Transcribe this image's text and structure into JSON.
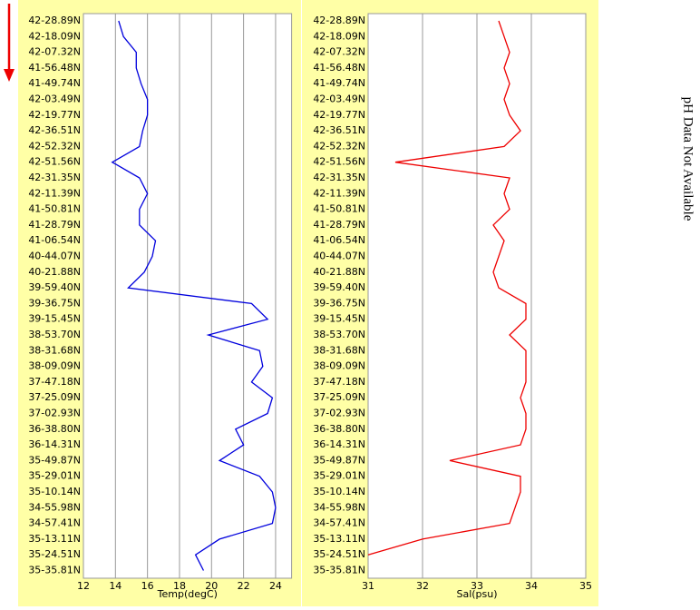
{
  "chart_data": [
    {
      "type": "line",
      "orientation": "horizontal",
      "xlabel": "Temp(degC)",
      "categories": [
        "42-28.89N",
        "42-18.09N",
        "42-07.32N",
        "41-56.48N",
        "41-49.74N",
        "42-03.49N",
        "42-19.77N",
        "42-36.51N",
        "42-52.32N",
        "42-51.56N",
        "42-31.35N",
        "42-11.39N",
        "41-50.81N",
        "41-28.79N",
        "41-06.54N",
        "40-44.07N",
        "40-21.88N",
        "39-59.40N",
        "39-36.75N",
        "39-15.45N",
        "38-53.70N",
        "38-31.68N",
        "38-09.09N",
        "37-47.18N",
        "37-25.09N",
        "37-02.93N",
        "36-38.80N",
        "36-14.31N",
        "35-49.87N",
        "35-29.01N",
        "35-10.14N",
        "34-55.98N",
        "34-57.41N",
        "35-13.11N",
        "35-24.51N",
        "35-35.81N"
      ],
      "series": [
        {
          "color": "#0000dd",
          "values": [
            14.2,
            14.5,
            15.3,
            15.3,
            15.6,
            16.0,
            16.0,
            15.7,
            15.5,
            13.8,
            15.5,
            16.0,
            15.5,
            15.5,
            16.5,
            16.3,
            15.8,
            14.8,
            22.5,
            23.5,
            19.8,
            23.0,
            23.2,
            22.5,
            23.8,
            23.5,
            21.5,
            22.0,
            20.5,
            23.0,
            23.8,
            24.0,
            23.8,
            20.5,
            19.0,
            19.5
          ]
        }
      ],
      "xlim": [
        12,
        25
      ],
      "xticks": [
        12,
        14,
        16,
        18,
        20,
        22,
        24
      ],
      "grid": true
    },
    {
      "type": "line",
      "orientation": "horizontal",
      "xlabel": "Sal(psu)",
      "categories": [
        "42-28.89N",
        "42-18.09N",
        "42-07.32N",
        "41-56.48N",
        "41-49.74N",
        "42-03.49N",
        "42-19.77N",
        "42-36.51N",
        "42-52.32N",
        "42-51.56N",
        "42-31.35N",
        "42-11.39N",
        "41-50.81N",
        "41-28.79N",
        "41-06.54N",
        "40-44.07N",
        "40-21.88N",
        "39-59.40N",
        "39-36.75N",
        "39-15.45N",
        "38-53.70N",
        "38-31.68N",
        "38-09.09N",
        "37-47.18N",
        "37-25.09N",
        "37-02.93N",
        "36-38.80N",
        "36-14.31N",
        "35-49.87N",
        "35-29.01N",
        "35-10.14N",
        "34-55.98N",
        "34-57.41N",
        "35-13.11N",
        "35-24.51N",
        "35-35.81N"
      ],
      "series": [
        {
          "color": "#ee0000",
          "values": [
            33.4,
            33.5,
            33.6,
            33.5,
            33.6,
            33.5,
            33.6,
            33.8,
            33.5,
            31.5,
            33.6,
            33.5,
            33.6,
            33.3,
            33.5,
            33.4,
            33.3,
            33.4,
            33.9,
            33.9,
            33.6,
            33.9,
            33.9,
            33.9,
            33.8,
            33.9,
            33.9,
            33.8,
            32.5,
            33.8,
            33.8,
            33.7,
            33.6,
            32.0,
            31.0,
            null
          ]
        }
      ],
      "xlim": [
        31,
        35
      ],
      "xticks": [
        31,
        32,
        33,
        34,
        35
      ],
      "grid": true
    }
  ],
  "annotation": "pH Data Not Available"
}
